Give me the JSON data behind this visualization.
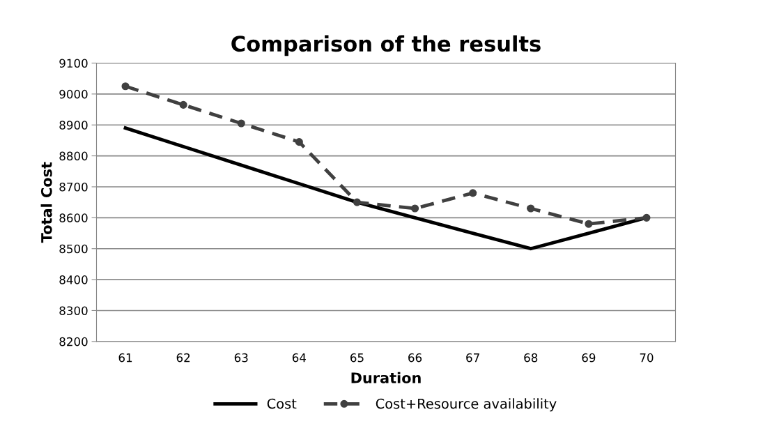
{
  "chart_data": {
    "type": "line",
    "title": "Comparison of the results",
    "xlabel": "Duration",
    "ylabel": "Total Cost",
    "categories": [
      "61",
      "62",
      "63",
      "64",
      "65",
      "66",
      "67",
      "68",
      "69",
      "70"
    ],
    "series": [
      {
        "name": "Cost",
        "color": "#000000",
        "line_style": "solid",
        "marker": "none",
        "values": [
          8890,
          8830,
          8770,
          8710,
          8650,
          8600,
          8550,
          8500,
          8550,
          8600
        ]
      },
      {
        "name": "Cost+Resource availability",
        "color": "#404040",
        "line_style": "dashed",
        "marker": "circle",
        "values": [
          9025,
          8965,
          8905,
          8845,
          8650,
          8630,
          8680,
          8630,
          8580,
          8600
        ]
      }
    ],
    "ylim": [
      8200,
      9100
    ],
    "yticks": [
      8200,
      8300,
      8400,
      8500,
      8600,
      8700,
      8800,
      8900,
      9000,
      9100
    ],
    "grid": "y",
    "legend": "bottom"
  }
}
